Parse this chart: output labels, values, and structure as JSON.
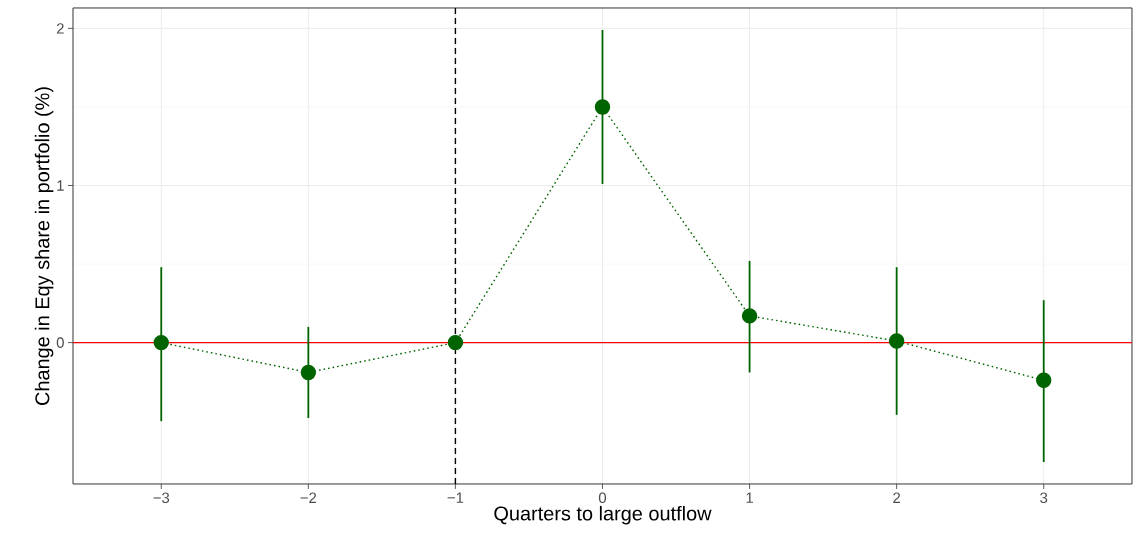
{
  "chart_data": {
    "type": "line",
    "xlabel": "Quarters to large outflow",
    "ylabel": "Change in Eqy share in portfolio (%)",
    "x": [
      -3,
      -2,
      -1,
      0,
      1,
      2,
      3
    ],
    "series": [
      {
        "color": "#006400",
        "values": [
          0,
          -0.19,
          0,
          1.5,
          0.17,
          0.01,
          -0.24
        ],
        "errors": [
          [
            -0.5,
            0.48
          ],
          [
            -0.48,
            0.1
          ],
          null,
          [
            1.01,
            1.99
          ],
          [
            -0.19,
            0.52
          ],
          [
            -0.46,
            0.48
          ],
          [
            -0.76,
            0.27
          ]
        ]
      }
    ],
    "marker": "circle",
    "line_style": "dotted",
    "grid": true,
    "xlim": [
      -3.6,
      3.6
    ],
    "ylim": [
      -0.9,
      2.13
    ],
    "xticks": [
      {
        "value": -3,
        "label": "−3"
      },
      {
        "value": -2,
        "label": "−2"
      },
      {
        "value": -1,
        "label": "−1"
      },
      {
        "value": 0,
        "label": "0"
      },
      {
        "value": 1,
        "label": "1"
      },
      {
        "value": 2,
        "label": "2"
      },
      {
        "value": 3,
        "label": "3"
      }
    ],
    "yticks": [
      {
        "value": 0,
        "label": "0"
      },
      {
        "value": 1,
        "label": "1"
      },
      {
        "value": 2,
        "label": "2"
      }
    ],
    "ref_lines": [
      {
        "axis": "y",
        "value": 0,
        "color": "#ff0000",
        "line_style": "solid"
      },
      {
        "axis": "x",
        "value": -1,
        "color": "#000000",
        "line_style": "dashed"
      }
    ]
  }
}
